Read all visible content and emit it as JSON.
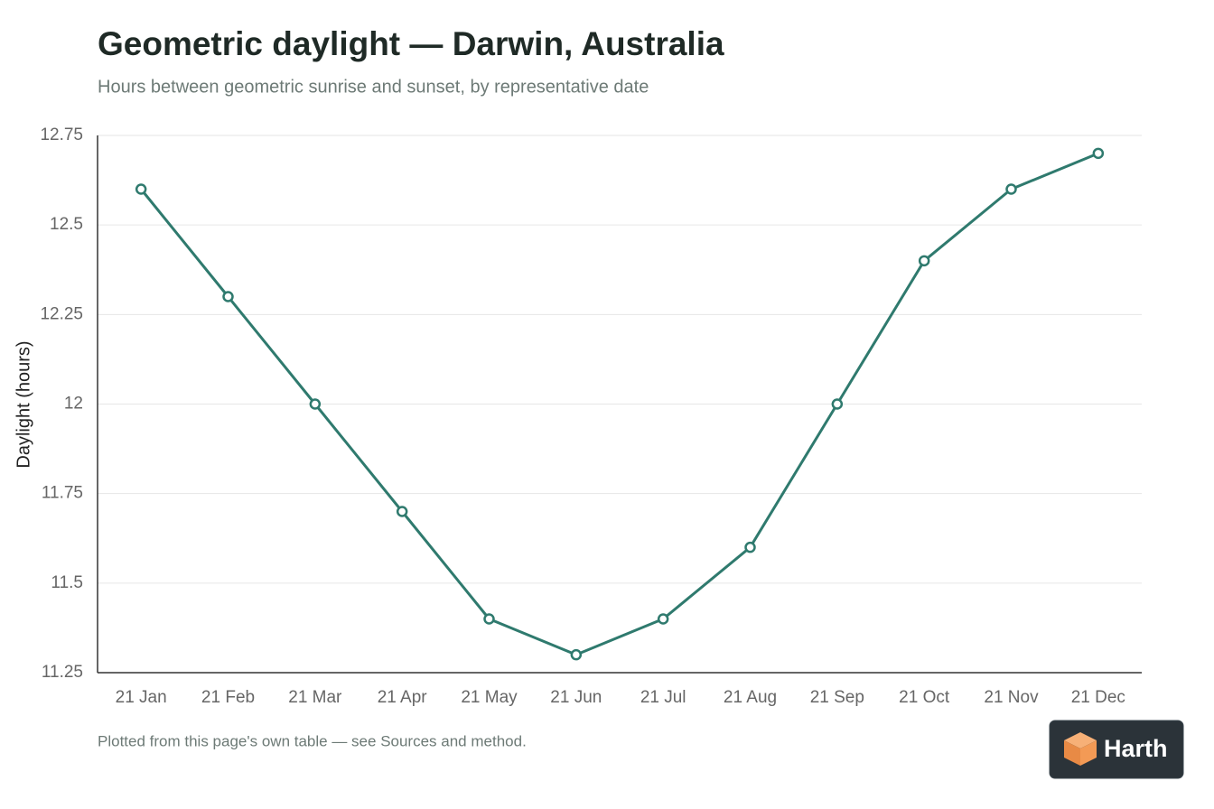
{
  "chart_data": {
    "type": "line",
    "title": "Geometric daylight — Darwin, Australia",
    "subtitle": "Hours between geometric sunrise and sunset, by representative date",
    "y_label": "Daylight (hours)",
    "categories": [
      "21 Jan",
      "21 Feb",
      "21 Mar",
      "21 Apr",
      "21 May",
      "21 Jun",
      "21 Jul",
      "21 Aug",
      "21 Sep",
      "21 Oct",
      "21 Nov",
      "21 Dec"
    ],
    "values": [
      12.6,
      12.3,
      12.0,
      11.7,
      11.4,
      11.3,
      11.4,
      11.6,
      12.0,
      12.4,
      12.6,
      12.7
    ],
    "color": "#2f7a6e",
    "ylim": [
      11.25,
      12.75
    ],
    "yticks": [
      11.25,
      11.5,
      11.75,
      12,
      12.25,
      12.5,
      12.75
    ],
    "grid": true,
    "footnote": "Plotted from this page's own table — see Sources and method.",
    "brand": "Harth"
  }
}
